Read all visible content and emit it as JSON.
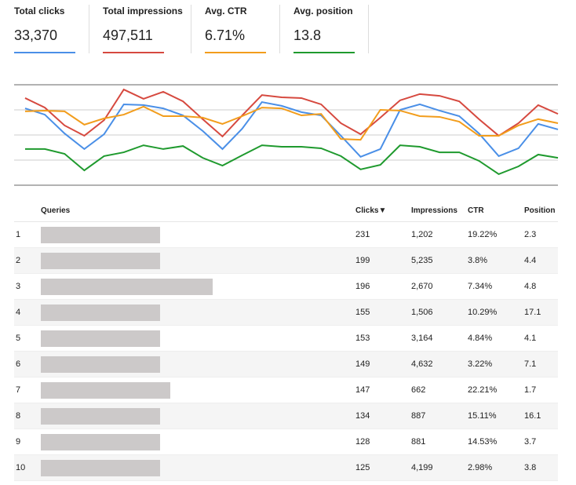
{
  "chart_data": {
    "type": "line",
    "ylim": [
      0,
      4
    ],
    "yticks": [
      0,
      1,
      2,
      3,
      4
    ],
    "grid": true,
    "series": [
      {
        "name": "Total clicks",
        "total": "33,370",
        "color": "#4a8fe7",
        "values": [
          3.06,
          2.81,
          2.06,
          1.44,
          2.03,
          3.22,
          3.19,
          3.06,
          2.78,
          2.16,
          1.44,
          2.25,
          3.31,
          3.16,
          2.91,
          2.78,
          1.97,
          1.13,
          1.44,
          3.0,
          3.22,
          2.97,
          2.75,
          2.06,
          1.16,
          1.47,
          2.44,
          2.22
        ]
      },
      {
        "name": "Total impressions",
        "total": "497,511",
        "color": "#d6493f",
        "values": [
          3.47,
          3.09,
          2.38,
          1.97,
          2.59,
          3.81,
          3.44,
          3.72,
          3.34,
          2.63,
          1.94,
          2.78,
          3.59,
          3.5,
          3.47,
          3.22,
          2.47,
          2.03,
          2.69,
          3.38,
          3.63,
          3.56,
          3.34,
          2.63,
          1.97,
          2.47,
          3.19,
          2.84
        ]
      },
      {
        "name": "Avg. CTR",
        "total": "6.71%",
        "color": "#f29d1c",
        "values": [
          2.94,
          2.97,
          2.94,
          2.41,
          2.66,
          2.81,
          3.13,
          2.75,
          2.75,
          2.69,
          2.44,
          2.75,
          3.09,
          3.06,
          2.78,
          2.84,
          1.84,
          1.81,
          3.0,
          2.97,
          2.75,
          2.72,
          2.53,
          1.97,
          1.97,
          2.38,
          2.63,
          2.47
        ]
      },
      {
        "name": "Avg. position",
        "total": "13.8",
        "color": "#1f9a2e",
        "values": [
          1.44,
          1.44,
          1.25,
          0.59,
          1.16,
          1.31,
          1.59,
          1.44,
          1.56,
          1.09,
          0.78,
          1.19,
          1.59,
          1.53,
          1.53,
          1.47,
          1.16,
          0.63,
          0.81,
          1.59,
          1.53,
          1.31,
          1.31,
          0.97,
          0.44,
          0.75,
          1.22,
          1.09
        ]
      }
    ]
  },
  "table": {
    "header": [
      "Queries",
      "Clicks▼",
      "Impressions",
      "CTR",
      "Position"
    ],
    "rows": [
      [
        "1",
        "231",
        "1,202",
        "19.22%",
        "2.3"
      ],
      [
        "2",
        "199",
        "5,235",
        "3.8%",
        "4.4"
      ],
      [
        "3",
        "196",
        "2,670",
        "7.34%",
        "4.8"
      ],
      [
        "4",
        "155",
        "1,506",
        "10.29%",
        "17.1"
      ],
      [
        "5",
        "153",
        "3,164",
        "4.84%",
        "4.1"
      ],
      [
        "6",
        "149",
        "4,632",
        "3.22%",
        "7.1"
      ],
      [
        "7",
        "147",
        "662",
        "22.21%",
        "1.7"
      ],
      [
        "8",
        "134",
        "887",
        "15.11%",
        "16.1"
      ],
      [
        "9",
        "128",
        "881",
        "14.53%",
        "3.7"
      ],
      [
        "10",
        "125",
        "4,199",
        "2.98%",
        "3.8"
      ]
    ]
  }
}
